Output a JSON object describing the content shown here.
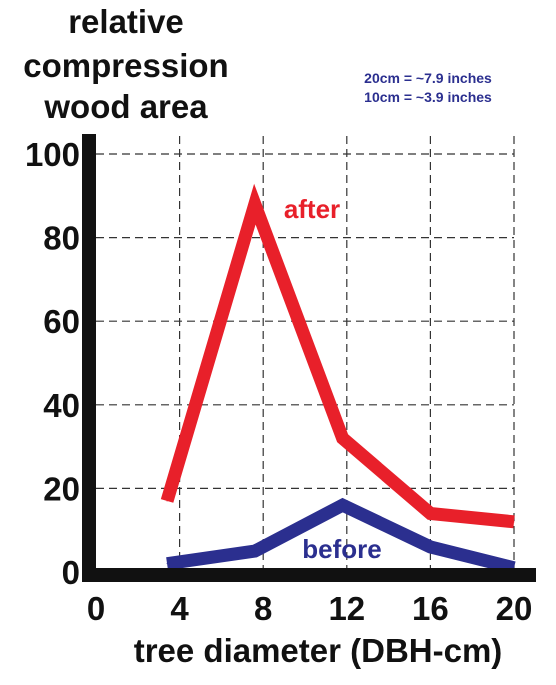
{
  "chart_data": {
    "type": "line",
    "title_lines": [
      "relative",
      "compression",
      "wood area"
    ],
    "notes": [
      "20cm = ~7.9 inches",
      "10cm = ~3.9 inches"
    ],
    "xlabel": "tree diameter (DBH-cm)",
    "ylabel": "",
    "xlim": [
      0,
      20
    ],
    "ylim": [
      0,
      100
    ],
    "x_ticks": [
      0,
      4,
      8,
      12,
      16,
      20
    ],
    "y_ticks": [
      0,
      20,
      40,
      60,
      80,
      100
    ],
    "grid": true,
    "series": [
      {
        "name": "after",
        "color": "#e8202a",
        "x": [
          3.4,
          7.6,
          11.8,
          16,
          20
        ],
        "values": [
          17,
          88,
          32,
          14,
          12
        ]
      },
      {
        "name": "before",
        "color": "#2b2f8f",
        "x": [
          3.4,
          7.6,
          11.8,
          16,
          20
        ],
        "values": [
          2,
          5,
          16,
          6,
          1
        ]
      }
    ]
  },
  "colors": {
    "axis": "#111111",
    "grid": "#333333",
    "note": "#2b2f8f"
  }
}
